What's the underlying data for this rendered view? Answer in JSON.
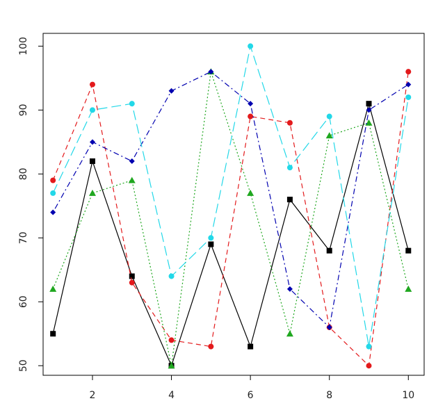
{
  "chart_data": {
    "type": "line",
    "title": "",
    "xlabel": "",
    "ylabel": "",
    "xlim": [
      0.75,
      10.4
    ],
    "ylim": [
      48.5,
      102
    ],
    "x_ticks": [
      2,
      4,
      6,
      8,
      10
    ],
    "y_ticks": [
      50,
      60,
      70,
      80,
      90,
      100
    ],
    "grid": false,
    "legend": "none",
    "x": [
      1,
      2,
      3,
      4,
      5,
      6,
      7,
      8,
      9,
      10
    ],
    "series": [
      {
        "values": [
          55,
          82,
          64,
          50,
          69,
          53,
          76,
          68,
          91,
          68
        ],
        "color": "#000000",
        "marker": "square",
        "line": "solid"
      },
      {
        "values": [
          79,
          94,
          63,
          54,
          53,
          89,
          88,
          56,
          50,
          96
        ],
        "color": "#e31a1c",
        "marker": "circle",
        "line": "dashed"
      },
      {
        "values": [
          62,
          77,
          79,
          50,
          96,
          77,
          55,
          86,
          88,
          62
        ],
        "color": "#1fa71f",
        "marker": "triangle",
        "line": "dotted"
      },
      {
        "values": [
          74,
          85,
          82,
          93,
          96,
          91,
          62,
          56,
          90,
          94
        ],
        "color": "#0000b0",
        "marker": "diamond",
        "line": "dotdash"
      },
      {
        "values": [
          77,
          90,
          91,
          64,
          70,
          100,
          81,
          89,
          53,
          92
        ],
        "color": "#22d8e8",
        "marker": "circle",
        "line": "longdash"
      }
    ]
  }
}
